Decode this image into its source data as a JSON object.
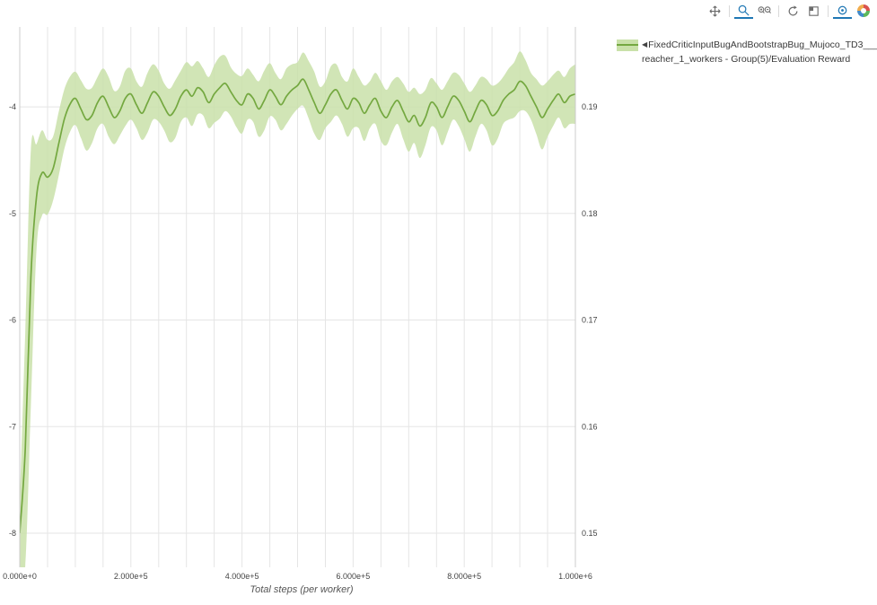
{
  "toolbar": {
    "icons": [
      "pan",
      "zoom",
      "zoom-in-out",
      "autoscale",
      "reset-axes",
      "hover-closest",
      "plotly-logo"
    ],
    "active_icons": [
      "zoom",
      "hover-closest"
    ],
    "accent_color": "#1f77b4"
  },
  "legend": {
    "collapse_marker": "◀",
    "line1": "FixedCriticInputBugAndBootstrapBug_Mujoco_TD3___",
    "line2": "reacher_1_workers - Group(5)/Evaluation Reward"
  },
  "chart_data": {
    "type": "line",
    "title": "",
    "xlabel": "Total steps (per worker)",
    "ylabel": "",
    "legend_position": "top-right-outside",
    "grid": true,
    "xlim": [
      0,
      1000000
    ],
    "x_grid_step": 50000,
    "xticks": {
      "values": [
        0,
        200000,
        400000,
        600000,
        800000,
        1000000
      ],
      "labels": [
        "0.000e+0",
        "2.000e+5",
        "4.000e+5",
        "6.000e+5",
        "8.000e+5",
        "1.000e+6"
      ]
    },
    "ylim": [
      -8.32,
      -3.25
    ],
    "yticks": {
      "values": [
        -4,
        -5,
        -6,
        -7,
        -8
      ],
      "labels": [
        "-4",
        "-5",
        "-6",
        "-7",
        "-8"
      ]
    },
    "y2lim": [
      0.1468,
      0.1975
    ],
    "y2ticks": {
      "values": [
        0.15,
        0.16,
        0.17,
        0.18,
        0.19
      ],
      "labels": [
        "0.15",
        "0.16",
        "0.17",
        "0.18",
        "0.19"
      ]
    },
    "x_step": 10000,
    "grid_color": "#e5e5e5",
    "axis_color": "#cccccc",
    "tick_color": "#444444",
    "series": [
      {
        "name": "FixedCriticInputBugAndBootstrapBug_Mujoco_TD3___reacher_1_workers - Group(5)/Evaluation Reward",
        "color": "#74a840",
        "band_color": "#c9e1a9",
        "mean": [
          -8.0,
          -7.2,
          -5.6,
          -4.85,
          -4.62,
          -4.66,
          -4.58,
          -4.35,
          -4.12,
          -3.98,
          -3.92,
          -4.02,
          -4.12,
          -4.08,
          -3.96,
          -3.9,
          -4.0,
          -4.1,
          -4.04,
          -3.92,
          -3.88,
          -3.98,
          -4.06,
          -3.96,
          -3.86,
          -3.9,
          -4.0,
          -4.08,
          -4.02,
          -3.9,
          -3.84,
          -3.9,
          -3.82,
          -3.86,
          -3.96,
          -3.88,
          -3.82,
          -3.78,
          -3.86,
          -3.94,
          -3.98,
          -3.88,
          -3.92,
          -4.02,
          -3.94,
          -3.84,
          -3.9,
          -3.98,
          -3.9,
          -3.84,
          -3.8,
          -3.74,
          -3.84,
          -3.96,
          -4.06,
          -3.98,
          -3.88,
          -3.84,
          -3.94,
          -4.02,
          -3.92,
          -3.96,
          -4.06,
          -3.98,
          -3.92,
          -4.04,
          -4.1,
          -4.0,
          -3.94,
          -4.04,
          -4.14,
          -4.08,
          -4.18,
          -4.1,
          -3.96,
          -4.0,
          -4.1,
          -4.0,
          -3.9,
          -3.94,
          -4.04,
          -4.14,
          -4.04,
          -3.94,
          -3.98,
          -4.08,
          -4.04,
          -3.94,
          -3.88,
          -3.84,
          -3.76,
          -3.8,
          -3.9,
          -4.0,
          -4.1,
          -4.02,
          -3.94,
          -3.88,
          -3.96,
          -3.9,
          -3.88
        ],
        "band_halfwidth": [
          0.3,
          1.1,
          1.2,
          0.5,
          0.4,
          0.35,
          0.3,
          0.3,
          0.28,
          0.26,
          0.25,
          0.27,
          0.29,
          0.26,
          0.24,
          0.26,
          0.28,
          0.25,
          0.23,
          0.26,
          0.24,
          0.22,
          0.25,
          0.28,
          0.26,
          0.24,
          0.22,
          0.25,
          0.27,
          0.24,
          0.26,
          0.28,
          0.25,
          0.22,
          0.24,
          0.27,
          0.29,
          0.26,
          0.23,
          0.25,
          0.27,
          0.24,
          0.22,
          0.26,
          0.28,
          0.25,
          0.22,
          0.24,
          0.26,
          0.24,
          0.22,
          0.25,
          0.27,
          0.29,
          0.25,
          0.22,
          0.26,
          0.24,
          0.22,
          0.26,
          0.28,
          0.24,
          0.26,
          0.22,
          0.24,
          0.28,
          0.26,
          0.24,
          0.22,
          0.26,
          0.28,
          0.26,
          0.3,
          0.26,
          0.23,
          0.22,
          0.26,
          0.24,
          0.22,
          0.24,
          0.26,
          0.28,
          0.24,
          0.22,
          0.24,
          0.28,
          0.26,
          0.22,
          0.24,
          0.26,
          0.28,
          0.24,
          0.22,
          0.26,
          0.3,
          0.26,
          0.24,
          0.22,
          0.24,
          0.26,
          0.28
        ]
      }
    ]
  }
}
